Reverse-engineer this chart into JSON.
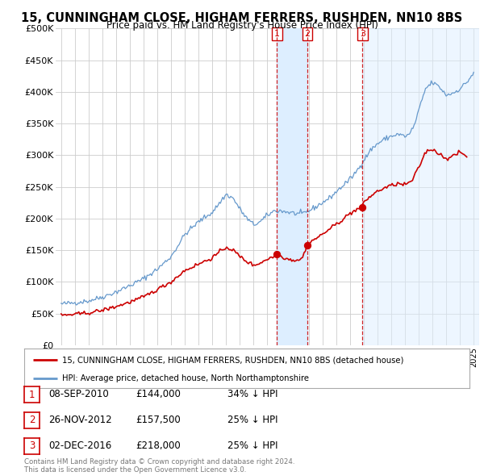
{
  "title": "15, CUNNINGHAM CLOSE, HIGHAM FERRERS, RUSHDEN, NN10 8BS",
  "subtitle": "Price paid vs. HM Land Registry's House Price Index (HPI)",
  "legend_label_red": "15, CUNNINGHAM CLOSE, HIGHAM FERRERS, RUSHDEN, NN10 8BS (detached house)",
  "legend_label_blue": "HPI: Average price, detached house, North Northamptonshire",
  "footer": "Contains HM Land Registry data © Crown copyright and database right 2024.\nThis data is licensed under the Open Government Licence v3.0.",
  "transactions": [
    {
      "num": 1,
      "date": "08-SEP-2010",
      "price": "£144,000",
      "pct": "34% ↓ HPI",
      "year": 2010.69
    },
    {
      "num": 2,
      "date": "26-NOV-2012",
      "price": "£157,500",
      "pct": "25% ↓ HPI",
      "year": 2012.9
    },
    {
      "num": 3,
      "date": "02-DEC-2016",
      "price": "£218,000",
      "pct": "25% ↓ HPI",
      "year": 2016.92
    }
  ],
  "transaction_prices": [
    144000,
    157500,
    218000
  ],
  "ylim": [
    0,
    500000
  ],
  "yticks": [
    0,
    50000,
    100000,
    150000,
    200000,
    250000,
    300000,
    350000,
    400000,
    450000,
    500000
  ],
  "red_color": "#cc0000",
  "blue_color": "#6699cc",
  "shade_color": "#ddeeff",
  "background_color": "#ffffff",
  "grid_color": "#cccccc"
}
